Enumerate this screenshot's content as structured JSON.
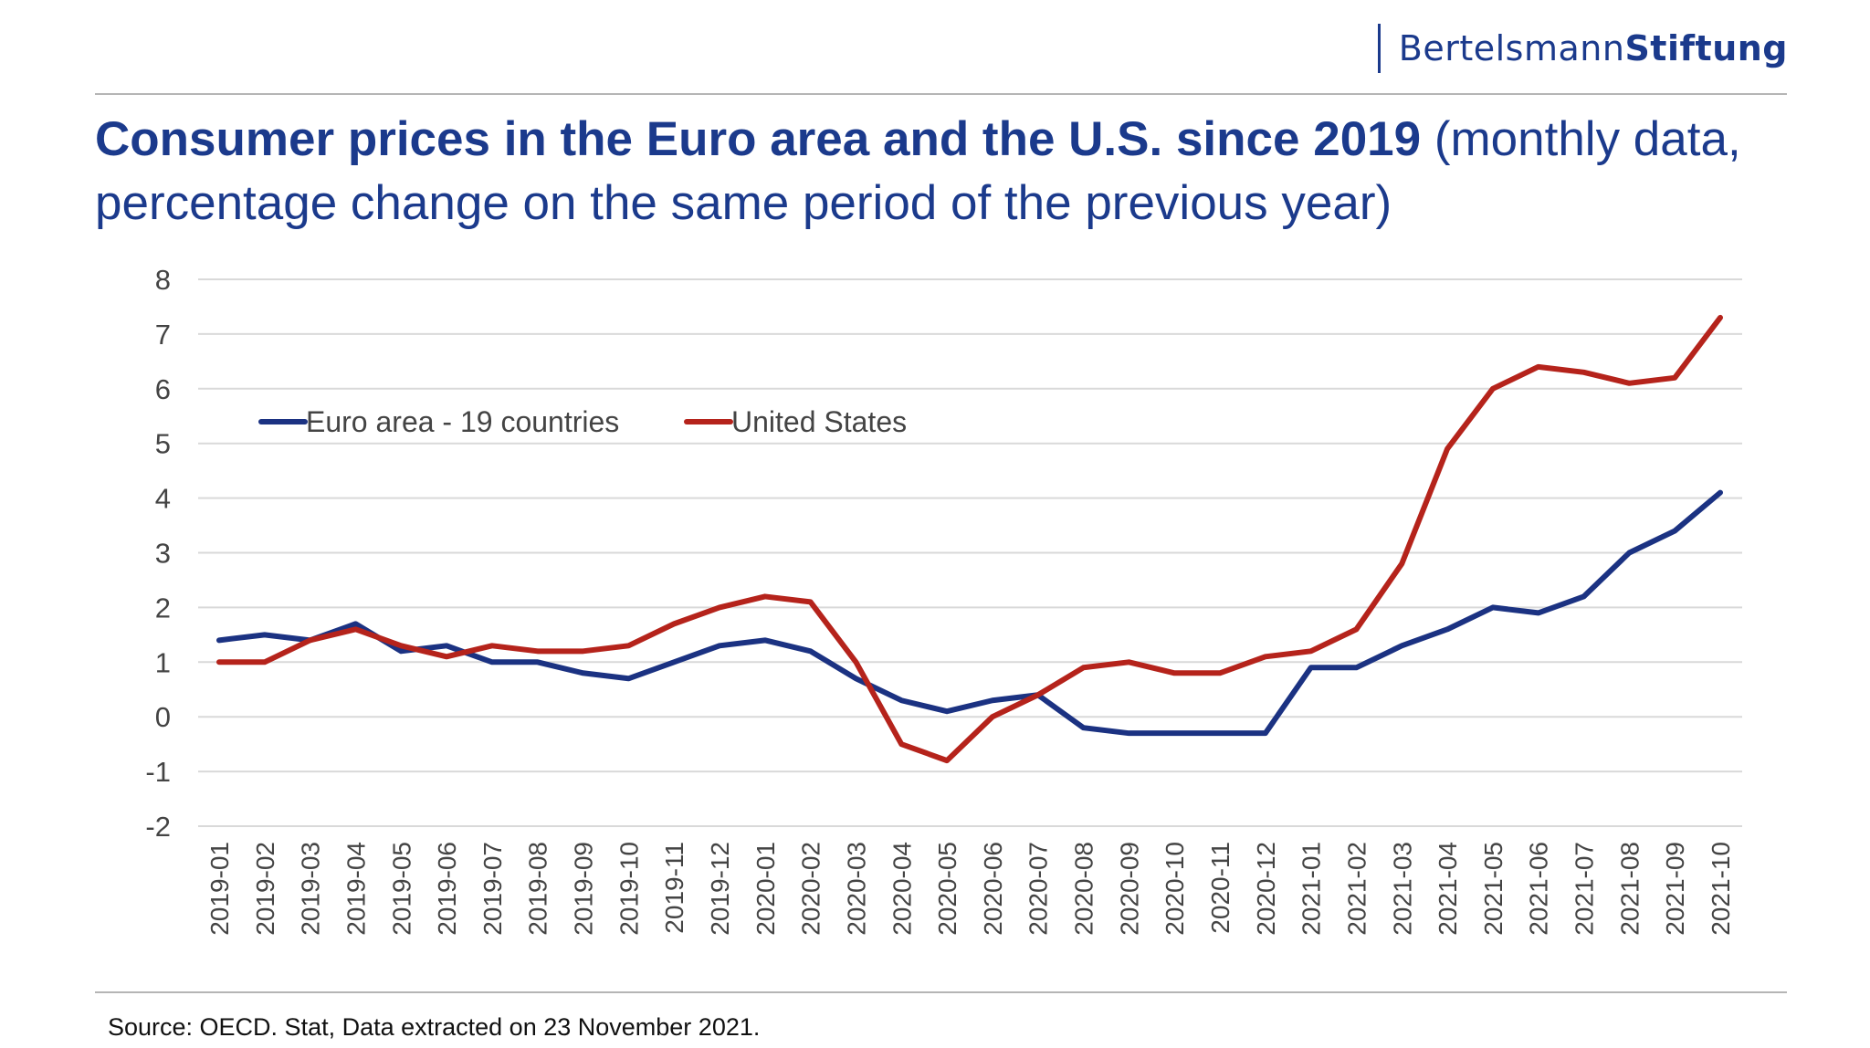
{
  "brand": {
    "part1": "Bertelsmann",
    "part2": "Stiftung"
  },
  "title": {
    "bold": "Consumer prices in the Euro area and the U.S. since 2019",
    "rest": " (monthly data, percentage change on the same period of the previous year)"
  },
  "source": "Source: OECD. Stat, Data extracted on 23 November 2021.",
  "colors": {
    "euro": "#1b3282",
    "us": "#b5231b",
    "brand": "#1b3a8c",
    "grid": "#d9d9d9"
  },
  "chart_data": {
    "type": "line",
    "title": "Consumer prices in the Euro area and the U.S. since 2019 (monthly data, percentage change on the same period of the previous year)",
    "xlabel": "",
    "ylabel": "",
    "ylim": [
      -2,
      8
    ],
    "yticks": [
      "-2",
      "-1",
      "0",
      "1",
      "2",
      "3",
      "4",
      "5",
      "6",
      "7",
      "8"
    ],
    "grid": true,
    "legend": "top-left",
    "x": [
      "2019-01",
      "2019-02",
      "2019-03",
      "2019-04",
      "2019-05",
      "2019-06",
      "2019-07",
      "2019-08",
      "2019-09",
      "2019-10",
      "2019-11",
      "2019-12",
      "2020-01",
      "2020-02",
      "2020-03",
      "2020-04",
      "2020-05",
      "2020-06",
      "2020-07",
      "2020-08",
      "2020-09",
      "2020-10",
      "2020-11",
      "2020-12",
      "2021-01",
      "2021-02",
      "2021-03",
      "2021-04",
      "2021-05",
      "2021-06",
      "2021-07",
      "2021-08",
      "2021-09",
      "2021-10"
    ],
    "series": [
      {
        "name": "Euro area - 19 countries",
        "color": "#1b3282",
        "values": [
          1.4,
          1.5,
          1.4,
          1.7,
          1.2,
          1.3,
          1.0,
          1.0,
          0.8,
          0.7,
          1.0,
          1.3,
          1.4,
          1.2,
          0.7,
          0.3,
          0.1,
          0.3,
          0.4,
          -0.2,
          -0.3,
          -0.3,
          -0.3,
          -0.3,
          0.9,
          0.9,
          1.3,
          1.6,
          2.0,
          1.9,
          2.2,
          3.0,
          3.4,
          4.1
        ]
      },
      {
        "name": "United States",
        "color": "#b5231b",
        "values": [
          1.0,
          1.0,
          1.4,
          1.6,
          1.3,
          1.1,
          1.3,
          1.2,
          1.2,
          1.3,
          1.7,
          2.0,
          2.2,
          2.1,
          1.0,
          -0.5,
          -0.8,
          0.0,
          0.4,
          0.9,
          1.0,
          0.8,
          0.8,
          1.1,
          1.2,
          1.6,
          2.8,
          4.9,
          6.0,
          6.4,
          6.3,
          6.1,
          6.2,
          7.3
        ]
      }
    ]
  }
}
